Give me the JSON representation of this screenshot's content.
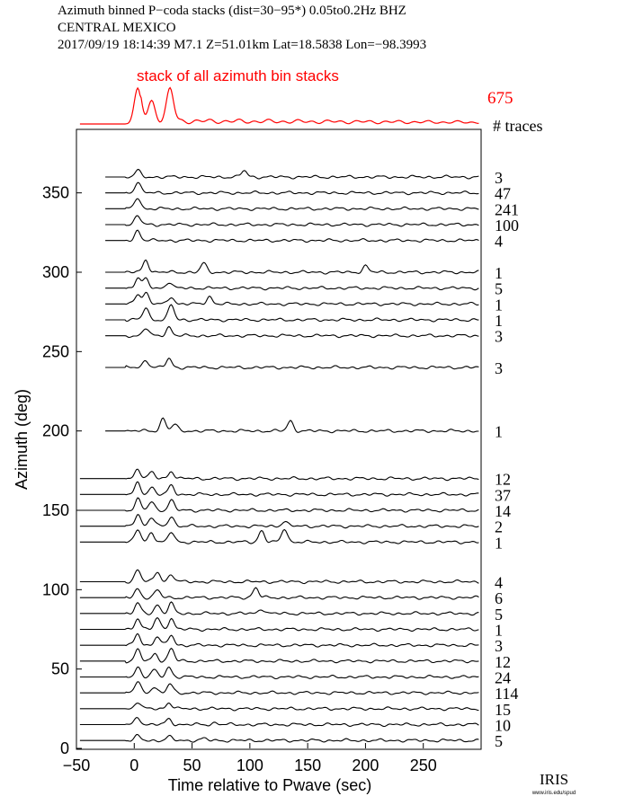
{
  "header": {
    "line1": "Azimuth binned P−coda stacks (dist=30−95*)  0.05to0.2Hz  BHZ",
    "line2": "CENTRAL MEXICO",
    "line3": "2017/09/19  18:14:39  M7.1  Z=51.01km Lat=18.5838 Lon=−98.3993"
  },
  "logo": {
    "text": "IRIS",
    "url_text": "www.iris.edu/spud"
  },
  "colors": {
    "stack": "#ff0000",
    "trace": "#000000"
  },
  "chart_data": {
    "type": "line",
    "title": "stack of all azimuth bin stacks",
    "total_traces": "675",
    "traces_label": "# traces",
    "xlabel": "Time relative to Pwave (sec)",
    "ylabel": "Azimuth (deg)",
    "xlim": [
      -50,
      300
    ],
    "ylim": [
      0,
      390
    ],
    "xticks": [
      -50,
      0,
      50,
      100,
      150,
      200,
      250
    ],
    "yticks": [
      0,
      50,
      100,
      150,
      200,
      250,
      300,
      350
    ],
    "summary_peaks": [
      [
        3,
        1.0
      ],
      [
        15,
        0.55
      ],
      [
        31,
        0.9
      ]
    ],
    "series": [
      {
        "azimuth": 5,
        "traces": "5",
        "peaks": [
          [
            3,
            0.35
          ],
          [
            30,
            0.3
          ],
          [
            60,
            0.15
          ]
        ]
      },
      {
        "azimuth": 15,
        "traces": "10",
        "peaks": [
          [
            3,
            0.6
          ],
          [
            30,
            0.45
          ],
          [
            70,
            0.15
          ]
        ]
      },
      {
        "azimuth": 25,
        "traces": "15",
        "peaks": [
          [
            3,
            0.55
          ],
          [
            30,
            0.5
          ]
        ]
      },
      {
        "azimuth": 35,
        "traces": "114",
        "peaks": [
          [
            3,
            0.9
          ],
          [
            17,
            0.5
          ],
          [
            31,
            0.7
          ]
        ]
      },
      {
        "azimuth": 45,
        "traces": "24",
        "peaks": [
          [
            3,
            0.8
          ],
          [
            17,
            0.55
          ],
          [
            30,
            0.8
          ]
        ]
      },
      {
        "azimuth": 55,
        "traces": "12",
        "peaks": [
          [
            3,
            0.9
          ],
          [
            18,
            0.6
          ],
          [
            32,
            1.0
          ]
        ]
      },
      {
        "azimuth": 65,
        "traces": "3",
        "peaks": [
          [
            3,
            0.9
          ],
          [
            20,
            0.7
          ],
          [
            32,
            0.8
          ]
        ]
      },
      {
        "azimuth": 75,
        "traces": "1",
        "peaks": [
          [
            3,
            0.9
          ],
          [
            20,
            0.9
          ],
          [
            32,
            0.9
          ]
        ]
      },
      {
        "azimuth": 85,
        "traces": "5",
        "peaks": [
          [
            3,
            0.8
          ],
          [
            20,
            0.7
          ],
          [
            32,
            0.8
          ],
          [
            110,
            0.4
          ]
        ]
      },
      {
        "azimuth": 95,
        "traces": "6",
        "peaks": [
          [
            3,
            0.7
          ],
          [
            20,
            0.6
          ],
          [
            105,
            0.8
          ]
        ]
      },
      {
        "azimuth": 105,
        "traces": "4",
        "peaks": [
          [
            3,
            1.0
          ],
          [
            20,
            0.8
          ],
          [
            32,
            0.6
          ]
        ]
      },
      {
        "azimuth": 130,
        "traces": "1",
        "peaks": [
          [
            3,
            1.0
          ],
          [
            15,
            0.8
          ],
          [
            32,
            0.8
          ],
          [
            110,
            0.9
          ],
          [
            130,
            1.1
          ]
        ]
      },
      {
        "azimuth": 140,
        "traces": "2",
        "peaks": [
          [
            3,
            1.0
          ],
          [
            15,
            0.7
          ],
          [
            32,
            0.8
          ],
          [
            130,
            0.4
          ]
        ]
      },
      {
        "azimuth": 150,
        "traces": "14",
        "peaks": [
          [
            3,
            0.9
          ],
          [
            15,
            0.7
          ],
          [
            32,
            0.8
          ]
        ]
      },
      {
        "azimuth": 160,
        "traces": "37",
        "peaks": [
          [
            3,
            0.9
          ],
          [
            15,
            0.6
          ],
          [
            32,
            0.7
          ]
        ]
      },
      {
        "azimuth": 170,
        "traces": "12",
        "peaks": [
          [
            3,
            0.8
          ],
          [
            15,
            0.5
          ],
          [
            32,
            0.6
          ]
        ]
      },
      {
        "azimuth": 200,
        "traces": "1",
        "peaks": [
          [
            25,
            1.0
          ],
          [
            35,
            0.5
          ],
          [
            135,
            0.8
          ]
        ]
      },
      {
        "azimuth": 240,
        "traces": "3",
        "peaks": [
          [
            10,
            0.6
          ],
          [
            30,
            0.7
          ]
        ]
      },
      {
        "azimuth": 260,
        "traces": "3",
        "peaks": [
          [
            10,
            0.6
          ],
          [
            30,
            0.7
          ]
        ]
      },
      {
        "azimuth": 270,
        "traces": "1",
        "peaks": [
          [
            10,
            1.0
          ],
          [
            32,
            1.2
          ]
        ]
      },
      {
        "azimuth": 280,
        "traces": "1",
        "peaks": [
          [
            3,
            0.8
          ],
          [
            10,
            0.9
          ],
          [
            32,
            0.6
          ],
          [
            65,
            0.6
          ]
        ]
      },
      {
        "azimuth": 290,
        "traces": "5",
        "peaks": [
          [
            3,
            0.8
          ],
          [
            10,
            0.7
          ],
          [
            30,
            0.5
          ]
        ]
      },
      {
        "azimuth": 300,
        "traces": "1",
        "peaks": [
          [
            10,
            1.0
          ],
          [
            60,
            0.7
          ],
          [
            200,
            0.5
          ]
        ]
      },
      {
        "azimuth": 320,
        "traces": "4",
        "peaks": [
          [
            3,
            0.8
          ]
        ]
      },
      {
        "azimuth": 330,
        "traces": "100",
        "peaks": [
          [
            3,
            0.7
          ]
        ]
      },
      {
        "azimuth": 340,
        "traces": "241",
        "peaks": [
          [
            3,
            0.9
          ]
        ]
      },
      {
        "azimuth": 350,
        "traces": "47",
        "peaks": [
          [
            3,
            0.9
          ]
        ]
      },
      {
        "azimuth": 360,
        "traces": "3",
        "peaks": [
          [
            3,
            0.5
          ],
          [
            95,
            0.5
          ]
        ]
      }
    ]
  }
}
